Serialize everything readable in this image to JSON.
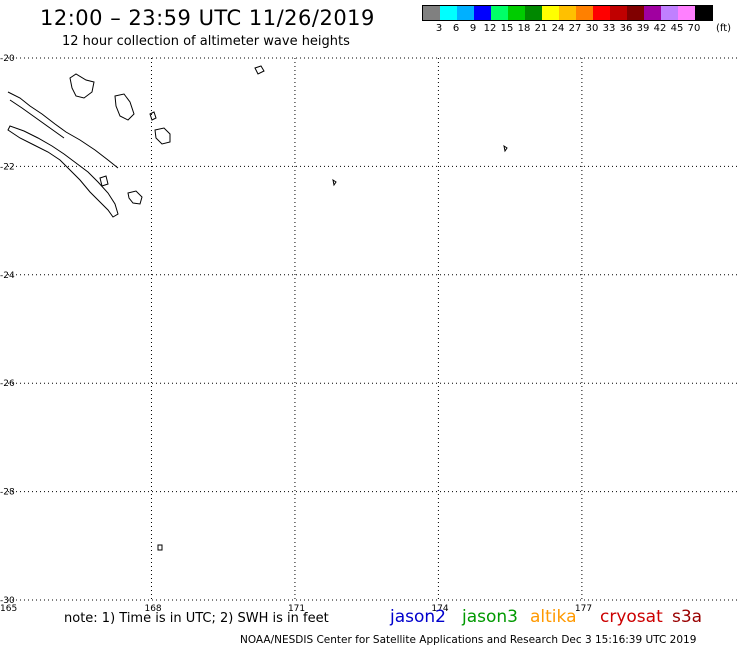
{
  "header": {
    "title": "12:00 – 23:59 UTC 11/26/2019",
    "subtitle": "12 hour collection of altimeter wave heights"
  },
  "legend": {
    "colors": [
      "#808080",
      "#00ffff",
      "#00b0ff",
      "#0000ff",
      "#00ff66",
      "#00cc00",
      "#008800",
      "#ffff00",
      "#ffc000",
      "#ff8000",
      "#ff0000",
      "#c00000",
      "#800000",
      "#a000a0",
      "#c080ff",
      "#ff80ff",
      "#000000"
    ],
    "labels": [
      "3",
      "6",
      "9",
      "12",
      "15",
      "18",
      "21",
      "24",
      "27",
      "30",
      "33",
      "36",
      "39",
      "42",
      "45",
      "70"
    ],
    "unit": "(ft)"
  },
  "map": {
    "lat_range": [
      -30,
      -20
    ],
    "lon_range": [
      165,
      180
    ],
    "lat_ticks": [
      {
        "value": -20,
        "label": "-20"
      },
      {
        "value": -22,
        "label": "-22"
      },
      {
        "value": -24,
        "label": "-24"
      },
      {
        "value": -26,
        "label": "-26"
      },
      {
        "value": -28,
        "label": "-28"
      },
      {
        "value": -30,
        "label": "-30"
      }
    ],
    "lon_ticks": [
      {
        "value": 165,
        "label": "165"
      },
      {
        "value": 168,
        "label": "168"
      },
      {
        "value": 171,
        "label": "171"
      },
      {
        "value": 174,
        "label": "174"
      },
      {
        "value": 177,
        "label": "177"
      }
    ],
    "grid": true
  },
  "note": "note: 1) Time is in UTC; 2) SWH is in feet",
  "satellites": [
    {
      "name": "jason2",
      "color": "#0000cc"
    },
    {
      "name": "jason3",
      "color": "#009900"
    },
    {
      "name": "altika",
      "color": "#ff9900"
    },
    {
      "name": "cryosat",
      "color": "#cc0000"
    },
    {
      "name": "s3a",
      "color": "#990000"
    }
  ],
  "footer": "NOAA/NESDIS Center for Satellite Applications and Research   Dec  3 15:16:39 UTC 2019"
}
